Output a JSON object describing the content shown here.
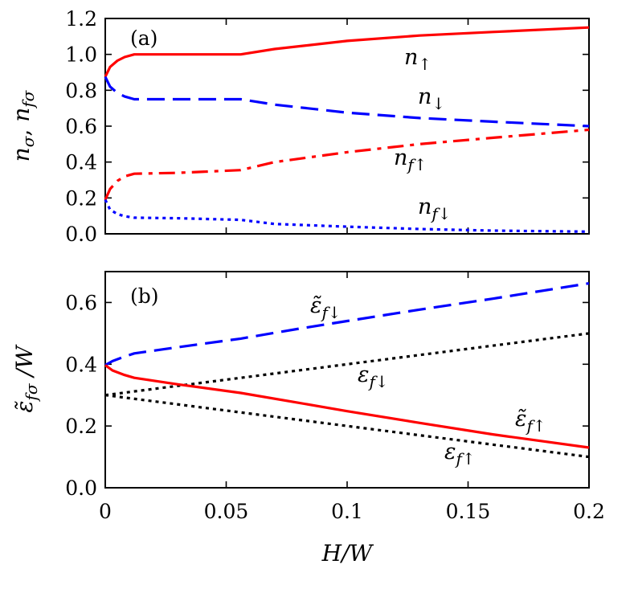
{
  "chart_data": [
    {
      "type": "line",
      "panel_label": "(a)",
      "xlabel": "",
      "ylabel": "nσ, nfσ",
      "xlim": [
        0,
        0.2
      ],
      "ylim": [
        0,
        1.2
      ],
      "xticks": [
        0,
        0.05,
        0.1,
        0.15,
        0.2
      ],
      "xtick_labels": [
        "",
        "",
        "",
        "",
        ""
      ],
      "yticks": [
        0,
        0.2,
        0.4,
        0.6,
        0.8,
        1.0,
        1.2
      ],
      "ytick_labels": [
        "0.0",
        "0.2",
        "0.4",
        "0.6",
        "0.8",
        "1.0",
        "1.2"
      ],
      "grid": false,
      "series": [
        {
          "label": "n↑",
          "color": "#ff0000",
          "dash": "solid",
          "x": [
            0,
            0.002,
            0.005,
            0.008,
            0.012,
            0.03,
            0.056,
            0.07,
            0.1,
            0.13,
            0.16,
            0.2
          ],
          "y": [
            0.875,
            0.93,
            0.965,
            0.985,
            1.0,
            1.0,
            1.0,
            1.03,
            1.075,
            1.105,
            1.125,
            1.15
          ]
        },
        {
          "label": "n↓",
          "color": "#0000ff",
          "dash": "long-dash",
          "x": [
            0,
            0.002,
            0.005,
            0.008,
            0.012,
            0.03,
            0.056,
            0.07,
            0.1,
            0.13,
            0.16,
            0.2
          ],
          "y": [
            0.875,
            0.82,
            0.785,
            0.765,
            0.75,
            0.75,
            0.75,
            0.72,
            0.675,
            0.645,
            0.625,
            0.6
          ]
        },
        {
          "label": "nf↑",
          "color": "#ff0000",
          "dash": "dash-dot",
          "x": [
            0,
            0.002,
            0.005,
            0.008,
            0.012,
            0.03,
            0.056,
            0.07,
            0.1,
            0.13,
            0.16,
            0.2
          ],
          "y": [
            0.19,
            0.25,
            0.295,
            0.32,
            0.335,
            0.34,
            0.355,
            0.4,
            0.455,
            0.5,
            0.535,
            0.58
          ]
        },
        {
          "label": "nf↓",
          "color": "#0000ff",
          "dash": "dotted",
          "x": [
            0,
            0.002,
            0.005,
            0.008,
            0.012,
            0.03,
            0.056,
            0.07,
            0.1,
            0.13,
            0.16,
            0.2
          ],
          "y": [
            0.19,
            0.135,
            0.11,
            0.098,
            0.09,
            0.087,
            0.078,
            0.055,
            0.04,
            0.027,
            0.018,
            0.012
          ]
        }
      ]
    },
    {
      "type": "line",
      "panel_label": "(b)",
      "xlabel": "H/W",
      "ylabel": "ε̃fσ /W",
      "xlim": [
        0,
        0.2
      ],
      "ylim": [
        0,
        0.7
      ],
      "xticks": [
        0,
        0.05,
        0.1,
        0.15,
        0.2
      ],
      "xtick_labels": [
        "0",
        "0.05",
        "0.1",
        "0.15",
        "0.2"
      ],
      "yticks": [
        0,
        0.2,
        0.4,
        0.6
      ],
      "ytick_labels": [
        "0.0",
        "0.2",
        "0.4",
        "0.6"
      ],
      "grid": false,
      "series": [
        {
          "label": "ε̃f↓",
          "color": "#0000ff",
          "dash": "long-dash",
          "x": [
            0,
            0.003,
            0.008,
            0.012,
            0.03,
            0.056,
            0.08,
            0.1,
            0.13,
            0.16,
            0.2
          ],
          "y": [
            0.397,
            0.41,
            0.425,
            0.435,
            0.455,
            0.483,
            0.515,
            0.54,
            0.577,
            0.612,
            0.662
          ]
        },
        {
          "label": "εf↓",
          "color": "#000000",
          "dash": "dotted",
          "x": [
            0,
            0.2
          ],
          "y": [
            0.3,
            0.5
          ]
        },
        {
          "label": "ε̃f↑",
          "color": "#ff0000",
          "dash": "solid",
          "x": [
            0,
            0.003,
            0.008,
            0.012,
            0.03,
            0.056,
            0.08,
            0.1,
            0.13,
            0.16,
            0.2
          ],
          "y": [
            0.397,
            0.38,
            0.365,
            0.356,
            0.335,
            0.307,
            0.275,
            0.248,
            0.21,
            0.173,
            0.13
          ]
        },
        {
          "label": "εf↑",
          "color": "#000000",
          "dash": "dotted",
          "x": [
            0,
            0.2
          ],
          "y": [
            0.3,
            0.1
          ]
        }
      ]
    }
  ],
  "labels": {
    "a_ylabel_n": "n",
    "a_ylabel_sigma": "σ",
    "a_ylabel_sep": ", ",
    "a_ylabel_nf": "n",
    "a_ylabel_fsigma": "fσ",
    "b_ylabel_eps": "ε̃",
    "b_ylabel_fsigma": "fσ",
    "b_ylabel_slash": " /W",
    "xlabel": "H/W",
    "n_up_base": "n",
    "n_up_sub": "↑",
    "n_dn_base": "n",
    "n_dn_sub": "↓",
    "nf_up_base": "n",
    "nf_up_sub": "f↑",
    "nf_dn_base": "n",
    "nf_dn_sub": "f↓",
    "et_dn_base": "ε̃",
    "et_dn_sub": "f↓",
    "e_dn_base": "ε",
    "e_dn_sub": "f↓",
    "et_up_base": "ε̃",
    "et_up_sub": "f↑",
    "e_up_base": "ε",
    "e_up_sub": "f↑"
  }
}
